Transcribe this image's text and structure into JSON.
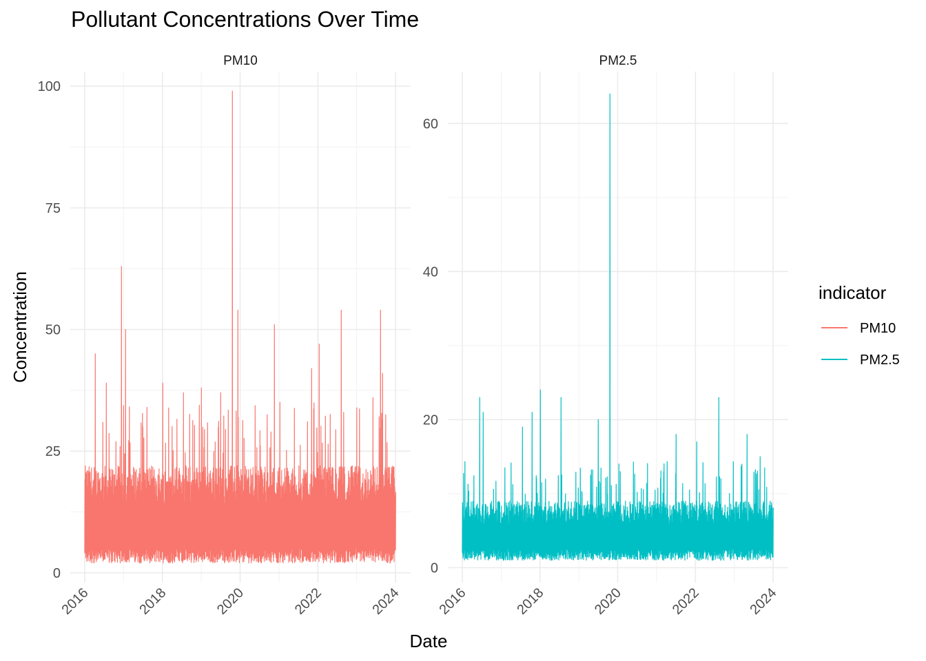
{
  "chart_data": {
    "type": "line",
    "title": "Pollutant Concentrations Over Time",
    "xlabel": "Date",
    "ylabel": "Concentration",
    "grid": true,
    "legend_title": "indicator",
    "legend_position": "right",
    "x_ticks": [
      "2016",
      "2018",
      "2020",
      "2022",
      "2024"
    ],
    "xlim": [
      "2016-01-01",
      "2024-01-01"
    ],
    "panels": [
      {
        "name": "PM10",
        "color": "#F8766D",
        "ylim": [
          -2,
          103
        ],
        "y_ticks": [
          0,
          25,
          50,
          75,
          100
        ],
        "baseline_min": 4,
        "baseline_max": 22,
        "peaks": [
          {
            "date": "2016-01-05",
            "value": 18
          },
          {
            "date": "2016-04-10",
            "value": 45
          },
          {
            "date": "2016-07-20",
            "value": 39
          },
          {
            "date": "2016-12-10",
            "value": 63
          },
          {
            "date": "2017-01-20",
            "value": 50
          },
          {
            "date": "2017-07-01",
            "value": 30
          },
          {
            "date": "2018-01-05",
            "value": 39
          },
          {
            "date": "2018-07-15",
            "value": 37
          },
          {
            "date": "2019-01-01",
            "value": 38
          },
          {
            "date": "2019-07-01",
            "value": 37
          },
          {
            "date": "2019-10-20",
            "value": 99
          },
          {
            "date": "2019-12-10",
            "value": 54
          },
          {
            "date": "2020-11-15",
            "value": 51
          },
          {
            "date": "2021-11-01",
            "value": 42
          },
          {
            "date": "2022-01-10",
            "value": 47
          },
          {
            "date": "2022-08-10",
            "value": 54
          },
          {
            "date": "2023-06-01",
            "value": 36
          },
          {
            "date": "2023-08-10",
            "value": 54
          },
          {
            "date": "2023-09-01",
            "value": 41
          }
        ]
      },
      {
        "name": "PM2.5",
        "color": "#00BFC4",
        "ylim": [
          -2,
          67
        ],
        "y_ticks": [
          0,
          20,
          40,
          60
        ],
        "baseline_min": 2,
        "baseline_max": 9,
        "peaks": [
          {
            "date": "2016-01-05",
            "value": 8
          },
          {
            "date": "2016-06-10",
            "value": 23
          },
          {
            "date": "2016-07-15",
            "value": 21
          },
          {
            "date": "2017-07-15",
            "value": 19
          },
          {
            "date": "2017-10-15",
            "value": 21
          },
          {
            "date": "2018-01-05",
            "value": 24
          },
          {
            "date": "2018-07-15",
            "value": 23
          },
          {
            "date": "2019-07-01",
            "value": 20
          },
          {
            "date": "2019-10-20",
            "value": 64
          },
          {
            "date": "2020-01-10",
            "value": 14
          },
          {
            "date": "2021-07-01",
            "value": 18
          },
          {
            "date": "2022-01-10",
            "value": 17
          },
          {
            "date": "2022-08-10",
            "value": 23
          },
          {
            "date": "2023-05-01",
            "value": 18
          },
          {
            "date": "2023-09-01",
            "value": 15
          }
        ]
      }
    ]
  }
}
